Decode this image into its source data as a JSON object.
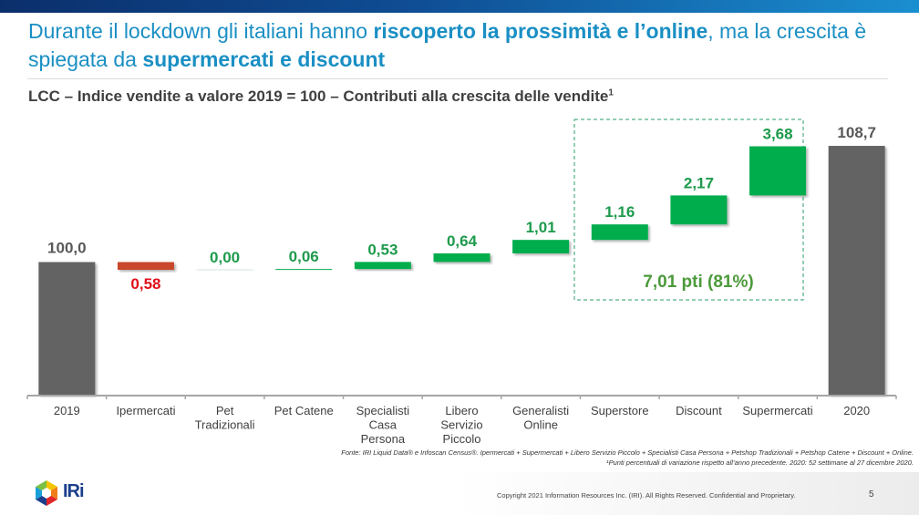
{
  "header": {
    "title_parts": [
      {
        "text": "Durante il lockdown gli italiani hanno ",
        "bold": false
      },
      {
        "text": "riscoperto la prossimità e l’online",
        "bold": true
      },
      {
        "text": ", ma la crescita è spiegata da ",
        "bold": false
      },
      {
        "text": "supermercati e discount",
        "bold": true
      }
    ],
    "subtitle": "LCC – Indice vendite a valore 2019 = 100 – Contributi alla crescita delle vendite",
    "subtitle_sup": "1"
  },
  "chart_data": {
    "type": "waterfall",
    "title": "LCC – Indice vendite a valore 2019 = 100 – Contributi alla crescita delle vendite",
    "start": {
      "category": "2019",
      "value": 100.0,
      "label": "100,0"
    },
    "end": {
      "category": "2020",
      "value": 108.7,
      "label": "108,7"
    },
    "steps": [
      {
        "category": "Ipermercati",
        "value": -0.58,
        "label": "0,58"
      },
      {
        "category": "Pet\nTradizionali",
        "value": 0.0,
        "label": "0,00"
      },
      {
        "category": "Pet Catene",
        "value": 0.06,
        "label": "0,06"
      },
      {
        "category": "Specialisti\nCasa\nPersona",
        "value": 0.53,
        "label": "0,53"
      },
      {
        "category": "Libero\nServizio\nPiccolo",
        "value": 0.64,
        "label": "0,64"
      },
      {
        "category": "Generalisti\nOnline",
        "value": 1.01,
        "label": "1,01"
      },
      {
        "category": "Superstore",
        "value": 1.16,
        "label": "1,16"
      },
      {
        "category": "Discount",
        "value": 2.17,
        "label": "2,17"
      },
      {
        "category": "Supermercati",
        "value": 3.68,
        "label": "3,68"
      }
    ],
    "annotation": {
      "text": "7,01 pti (81%)",
      "covers": [
        "Superstore",
        "Discount",
        "Supermercati"
      ]
    },
    "colors": {
      "total": "#636363",
      "positive": "#00ad4e",
      "negative": "#c9472b",
      "total_label": "#595959",
      "positive_label": "#1e9a4c",
      "negative_label": "#e0101c",
      "annotation": "#4b9a3a"
    },
    "xlabel": "",
    "ylabel": "",
    "grid": false
  },
  "footnotes": {
    "source": "Fonte: IRI Liquid Data® e Infoscan Census®. Ipermercati + Supermercati + Libero Servizio Piccolo + Specialisti Casa Persona + Petshop Tradizionali + Petshop Catene + Discount + Online.",
    "note": "¹Punti percentuali di variazione rispetto all’anno precedente. 2020: 52 settimane al 27 dicembre 2020."
  },
  "footer": {
    "logo_text": "IRi",
    "copyright": "Copyright 2021 Information Resources Inc. (IRI). All Rights Reserved. Confidential and Proprietary.",
    "page_number": "5"
  }
}
